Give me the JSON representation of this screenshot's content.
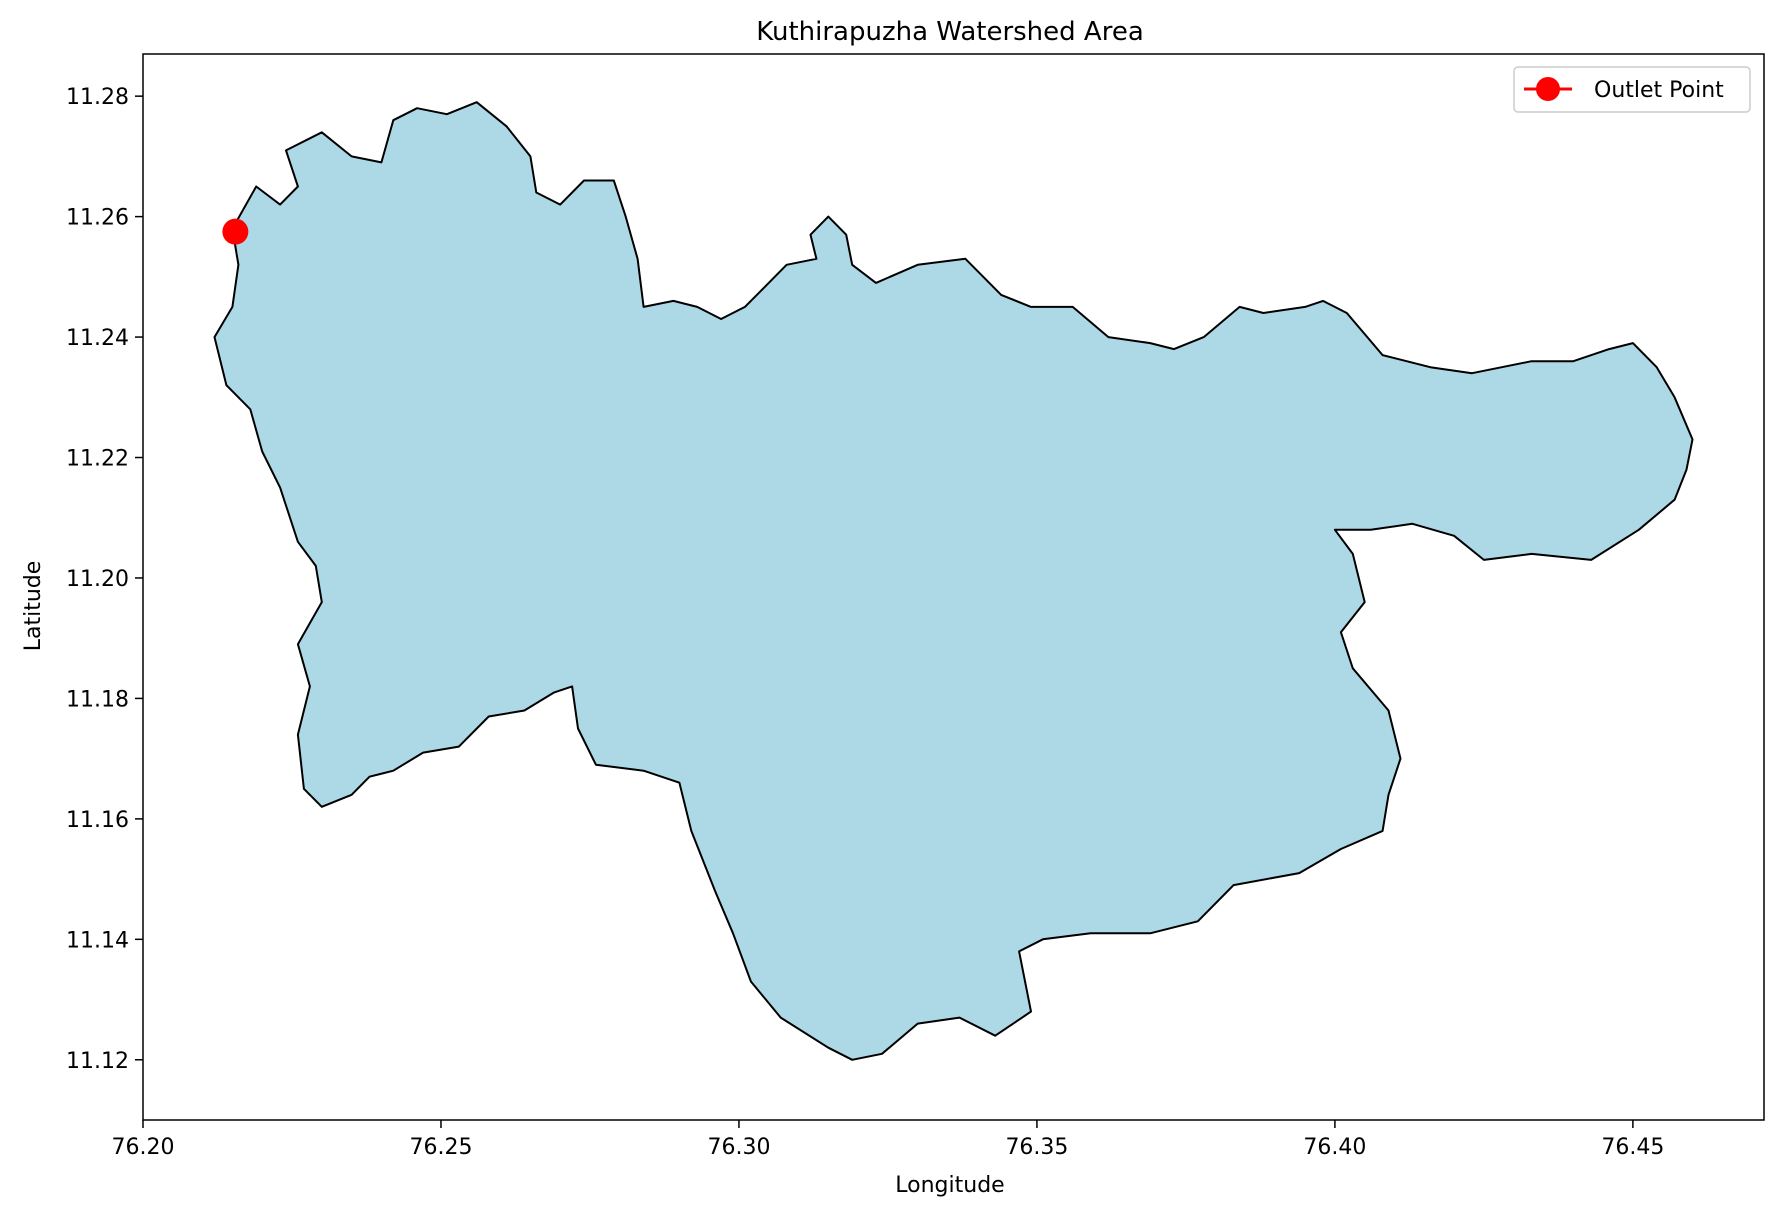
{
  "chart_data": {
    "type": "area",
    "title": "Kuthirapuzha Watershed Area",
    "xlabel": "Longitude",
    "ylabel": "Latitude",
    "xlim": [
      76.2,
      76.472
    ],
    "ylim": [
      11.11,
      11.287
    ],
    "xticks": [
      76.2,
      76.25,
      76.3,
      76.35,
      76.4,
      76.45
    ],
    "xtick_labels": [
      "76.20",
      "76.25",
      "76.30",
      "76.35",
      "76.40",
      "76.45"
    ],
    "yticks": [
      11.12,
      11.14,
      11.16,
      11.18,
      11.2,
      11.22,
      11.24,
      11.26,
      11.28
    ],
    "ytick_labels": [
      "11.12",
      "11.14",
      "11.16",
      "11.18",
      "11.20",
      "11.22",
      "11.24",
      "11.26",
      "11.28"
    ],
    "grid": false,
    "legend_position": "top-right",
    "series": [
      {
        "name": "",
        "fill_color": "#add8e6",
        "edge_color": "#000000",
        "boundary": [
          [
            76.215,
            11.258
          ],
          [
            76.219,
            11.265
          ],
          [
            76.223,
            11.262
          ],
          [
            76.226,
            11.265
          ],
          [
            76.224,
            11.271
          ],
          [
            76.23,
            11.274
          ],
          [
            76.235,
            11.27
          ],
          [
            76.24,
            11.269
          ],
          [
            76.242,
            11.276
          ],
          [
            76.246,
            11.278
          ],
          [
            76.251,
            11.277
          ],
          [
            76.256,
            11.279
          ],
          [
            76.261,
            11.275
          ],
          [
            76.265,
            11.27
          ],
          [
            76.266,
            11.264
          ],
          [
            76.27,
            11.262
          ],
          [
            76.274,
            11.266
          ],
          [
            76.279,
            11.266
          ],
          [
            76.281,
            11.26
          ],
          [
            76.283,
            11.253
          ],
          [
            76.284,
            11.245
          ],
          [
            76.289,
            11.246
          ],
          [
            76.293,
            11.245
          ],
          [
            76.297,
            11.243
          ],
          [
            76.301,
            11.245
          ],
          [
            76.304,
            11.248
          ],
          [
            76.308,
            11.252
          ],
          [
            76.313,
            11.253
          ],
          [
            76.312,
            11.257
          ],
          [
            76.315,
            11.26
          ],
          [
            76.318,
            11.257
          ],
          [
            76.319,
            11.252
          ],
          [
            76.323,
            11.249
          ],
          [
            76.33,
            11.252
          ],
          [
            76.338,
            11.253
          ],
          [
            76.344,
            11.247
          ],
          [
            76.349,
            11.245
          ],
          [
            76.356,
            11.245
          ],
          [
            76.362,
            11.24
          ],
          [
            76.369,
            11.239
          ],
          [
            76.373,
            11.238
          ],
          [
            76.378,
            11.24
          ],
          [
            76.384,
            11.245
          ],
          [
            76.388,
            11.244
          ],
          [
            76.395,
            11.245
          ],
          [
            76.398,
            11.246
          ],
          [
            76.402,
            11.244
          ],
          [
            76.408,
            11.237
          ],
          [
            76.416,
            11.235
          ],
          [
            76.423,
            11.234
          ],
          [
            76.428,
            11.235
          ],
          [
            76.433,
            11.236
          ],
          [
            76.44,
            11.236
          ],
          [
            76.446,
            11.238
          ],
          [
            76.45,
            11.239
          ],
          [
            76.454,
            11.235
          ],
          [
            76.457,
            11.23
          ],
          [
            76.46,
            11.223
          ],
          [
            76.459,
            11.218
          ],
          [
            76.457,
            11.213
          ],
          [
            76.451,
            11.208
          ],
          [
            76.443,
            11.203
          ],
          [
            76.433,
            11.204
          ],
          [
            76.425,
            11.203
          ],
          [
            76.42,
            11.207
          ],
          [
            76.413,
            11.209
          ],
          [
            76.406,
            11.208
          ],
          [
            76.4,
            11.208
          ],
          [
            76.403,
            11.204
          ],
          [
            76.405,
            11.196
          ],
          [
            76.401,
            11.191
          ],
          [
            76.403,
            11.185
          ],
          [
            76.409,
            11.178
          ],
          [
            76.411,
            11.17
          ],
          [
            76.409,
            11.164
          ],
          [
            76.408,
            11.158
          ],
          [
            76.401,
            11.155
          ],
          [
            76.394,
            11.151
          ],
          [
            76.383,
            11.149
          ],
          [
            76.377,
            11.143
          ],
          [
            76.369,
            11.141
          ],
          [
            76.359,
            11.141
          ],
          [
            76.351,
            11.14
          ],
          [
            76.347,
            11.138
          ],
          [
            76.349,
            11.128
          ],
          [
            76.343,
            11.124
          ],
          [
            76.337,
            11.127
          ],
          [
            76.33,
            11.126
          ],
          [
            76.324,
            11.121
          ],
          [
            76.319,
            11.12
          ],
          [
            76.315,
            11.122
          ],
          [
            76.307,
            11.127
          ],
          [
            76.302,
            11.133
          ],
          [
            76.299,
            11.141
          ],
          [
            76.296,
            11.148
          ],
          [
            76.292,
            11.158
          ],
          [
            76.29,
            11.166
          ],
          [
            76.284,
            11.168
          ],
          [
            76.276,
            11.169
          ],
          [
            76.273,
            11.175
          ],
          [
            76.272,
            11.182
          ],
          [
            76.269,
            11.181
          ],
          [
            76.264,
            11.178
          ],
          [
            76.258,
            11.177
          ],
          [
            76.253,
            11.172
          ],
          [
            76.247,
            11.171
          ],
          [
            76.242,
            11.168
          ],
          [
            76.238,
            11.167
          ],
          [
            76.235,
            11.164
          ],
          [
            76.23,
            11.162
          ],
          [
            76.227,
            11.165
          ],
          [
            76.226,
            11.174
          ],
          [
            76.228,
            11.182
          ],
          [
            76.226,
            11.189
          ],
          [
            76.23,
            11.196
          ],
          [
            76.229,
            11.202
          ],
          [
            76.226,
            11.206
          ],
          [
            76.223,
            11.215
          ],
          [
            76.22,
            11.221
          ],
          [
            76.218,
            11.228
          ],
          [
            76.214,
            11.232
          ],
          [
            76.212,
            11.24
          ],
          [
            76.215,
            11.245
          ],
          [
            76.216,
            11.252
          ]
        ]
      },
      {
        "name": "Outlet Point",
        "color": "#ff0000",
        "points": [
          [
            76.2155,
            11.2575
          ]
        ]
      }
    ]
  }
}
